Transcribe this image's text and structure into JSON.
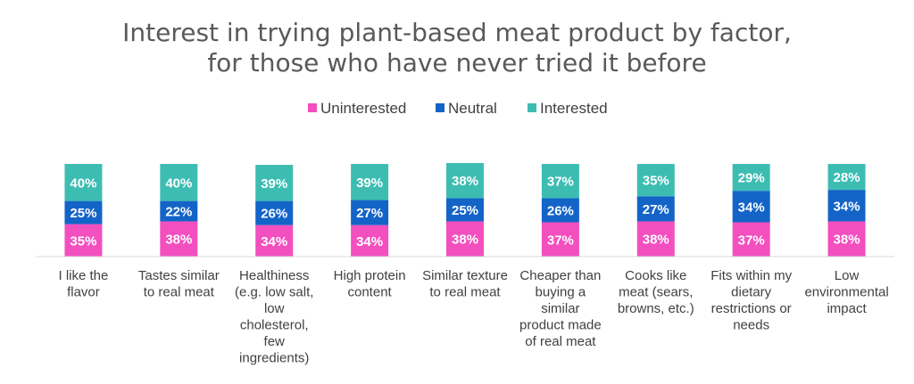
{
  "chart_data": {
    "type": "bar",
    "stacked": true,
    "percent_labels": true,
    "title_lines": [
      "Interest in trying plant-based meat product by factor,",
      "for those who have never tried it before"
    ],
    "legend_position": "top-center",
    "categories": [
      [
        "I like the",
        "flavor"
      ],
      [
        "Tastes similar",
        "to real meat"
      ],
      [
        "Healthiness",
        "(e.g. low salt,",
        "low",
        "cholesterol,",
        "few",
        "ingredients)"
      ],
      [
        "High protein",
        "content"
      ],
      [
        "Similar texture",
        "to real meat"
      ],
      [
        "Cheaper than",
        "buying a",
        "similar",
        "product made",
        "of real meat"
      ],
      [
        "Cooks like",
        "meat (sears,",
        "browns, etc.)"
      ],
      [
        "Fits within my",
        "dietary",
        "restrictions or",
        "needs"
      ],
      [
        "Low",
        "environmental",
        "impact"
      ]
    ],
    "series": [
      {
        "name": "Uninterested",
        "color": "#F34FBF",
        "values": [
          35,
          38,
          34,
          34,
          38,
          37,
          38,
          37,
          38
        ]
      },
      {
        "name": "Neutral",
        "color": "#1464C8",
        "values": [
          25,
          22,
          26,
          27,
          25,
          26,
          27,
          34,
          34
        ]
      },
      {
        "name": "Interested",
        "color": "#3DBDB2",
        "values": [
          40,
          40,
          39,
          39,
          38,
          37,
          35,
          29,
          28
        ]
      }
    ],
    "ylim": [
      0,
      100
    ],
    "grid": false
  }
}
